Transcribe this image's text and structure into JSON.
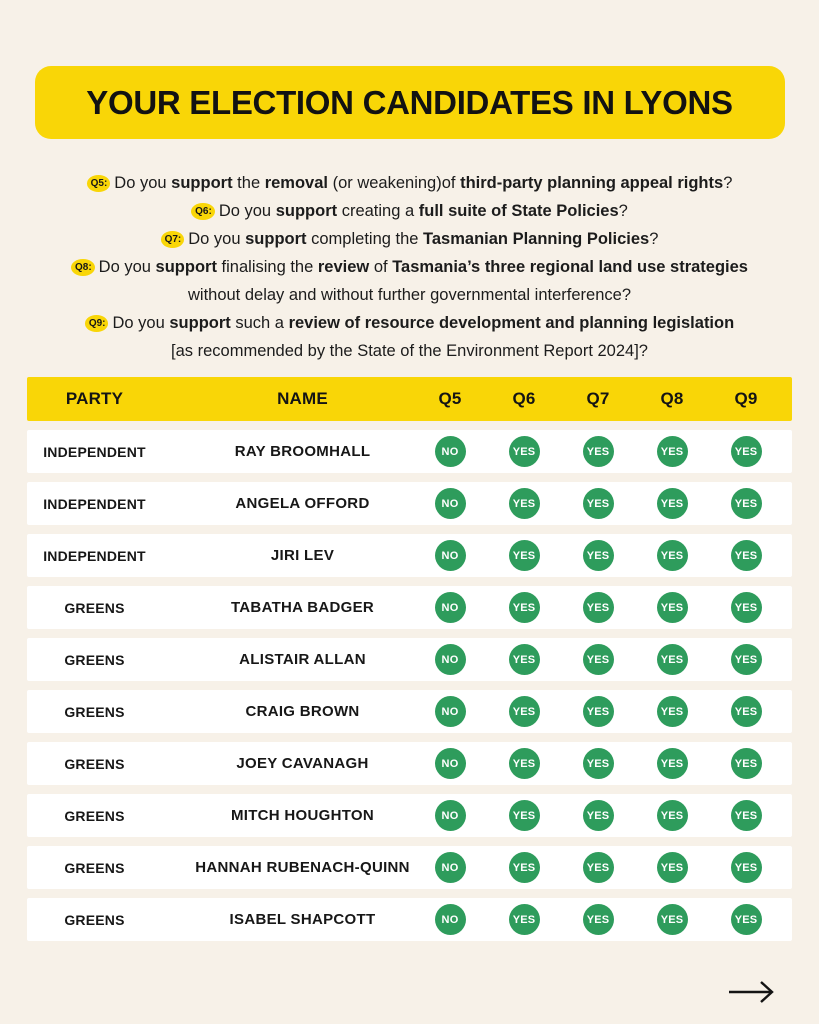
{
  "colors": {
    "yellow": "#F9D607",
    "green": "#2E9C5C",
    "cream": "#F7F1E8",
    "ink": "#171717"
  },
  "title": "YOUR ELECTION CANDIDATES IN LYONS",
  "questions": [
    {
      "badge": "Q5:",
      "lines": [
        [
          {
            "t": "Do you ",
            "b": false
          },
          {
            "t": "support",
            "b": true
          },
          {
            "t": " the ",
            "b": false
          },
          {
            "t": "removal",
            "b": true
          },
          {
            "t": " (or weakening)of ",
            "b": false
          },
          {
            "t": "third-party planning appeal rights",
            "b": true
          },
          {
            "t": "?",
            "b": false
          }
        ]
      ]
    },
    {
      "badge": "Q6:",
      "lines": [
        [
          {
            "t": "Do you ",
            "b": false
          },
          {
            "t": "support",
            "b": true
          },
          {
            "t": " creating a ",
            "b": false
          },
          {
            "t": "full suite of State Policies",
            "b": true
          },
          {
            "t": "?",
            "b": false
          }
        ]
      ]
    },
    {
      "badge": "Q7:",
      "lines": [
        [
          {
            "t": "Do you ",
            "b": false
          },
          {
            "t": "support",
            "b": true
          },
          {
            "t": " completing the ",
            "b": false
          },
          {
            "t": "Tasmanian Planning Policies",
            "b": true
          },
          {
            "t": "?",
            "b": false
          }
        ]
      ]
    },
    {
      "badge": "Q8:",
      "lines": [
        [
          {
            "t": "Do you ",
            "b": false
          },
          {
            "t": "support",
            "b": true
          },
          {
            "t": " finalising the ",
            "b": false
          },
          {
            "t": "review",
            "b": true
          },
          {
            "t": " of ",
            "b": false
          },
          {
            "t": "Tasmania’s three regional land use strategies",
            "b": true
          }
        ],
        [
          {
            "t": "without delay and without further governmental interference?",
            "b": false
          }
        ]
      ]
    },
    {
      "badge": "Q9:",
      "lines": [
        [
          {
            "t": "Do you ",
            "b": false
          },
          {
            "t": "support",
            "b": true
          },
          {
            "t": " such a ",
            "b": false
          },
          {
            "t": "review of resource development and planning legislation",
            "b": true
          }
        ],
        [
          {
            "t": "[as recommended by the State of the Environment Report 2024]?",
            "b": false
          }
        ]
      ]
    }
  ],
  "table": {
    "headers": [
      "PARTY",
      "NAME",
      "Q5",
      "Q6",
      "Q7",
      "Q8",
      "Q9"
    ],
    "rows": [
      {
        "party": "INDEPENDENT",
        "name": "RAY BROOMHALL",
        "answers": [
          "NO",
          "YES",
          "YES",
          "YES",
          "YES"
        ]
      },
      {
        "party": "INDEPENDENT",
        "name": "ANGELA OFFORD",
        "answers": [
          "NO",
          "YES",
          "YES",
          "YES",
          "YES"
        ]
      },
      {
        "party": "INDEPENDENT",
        "name": "JIRI LEV",
        "answers": [
          "NO",
          "YES",
          "YES",
          "YES",
          "YES"
        ]
      },
      {
        "party": "GREENS",
        "name": "TABATHA BADGER",
        "answers": [
          "NO",
          "YES",
          "YES",
          "YES",
          "YES"
        ]
      },
      {
        "party": "GREENS",
        "name": "ALISTAIR ALLAN",
        "answers": [
          "NO",
          "YES",
          "YES",
          "YES",
          "YES"
        ]
      },
      {
        "party": "GREENS",
        "name": "CRAIG BROWN",
        "answers": [
          "NO",
          "YES",
          "YES",
          "YES",
          "YES"
        ]
      },
      {
        "party": "GREENS",
        "name": "JOEY CAVANAGH",
        "answers": [
          "NO",
          "YES",
          "YES",
          "YES",
          "YES"
        ]
      },
      {
        "party": "GREENS",
        "name": "MITCH HOUGHTON",
        "answers": [
          "NO",
          "YES",
          "YES",
          "YES",
          "YES"
        ]
      },
      {
        "party": "GREENS",
        "name": "HANNAH RUBENACH-QUINN",
        "answers": [
          "NO",
          "YES",
          "YES",
          "YES",
          "YES"
        ]
      },
      {
        "party": "GREENS",
        "name": "ISABEL SHAPCOTT",
        "answers": [
          "NO",
          "YES",
          "YES",
          "YES",
          "YES"
        ]
      }
    ]
  },
  "footer": {
    "arrow_label": "next"
  }
}
